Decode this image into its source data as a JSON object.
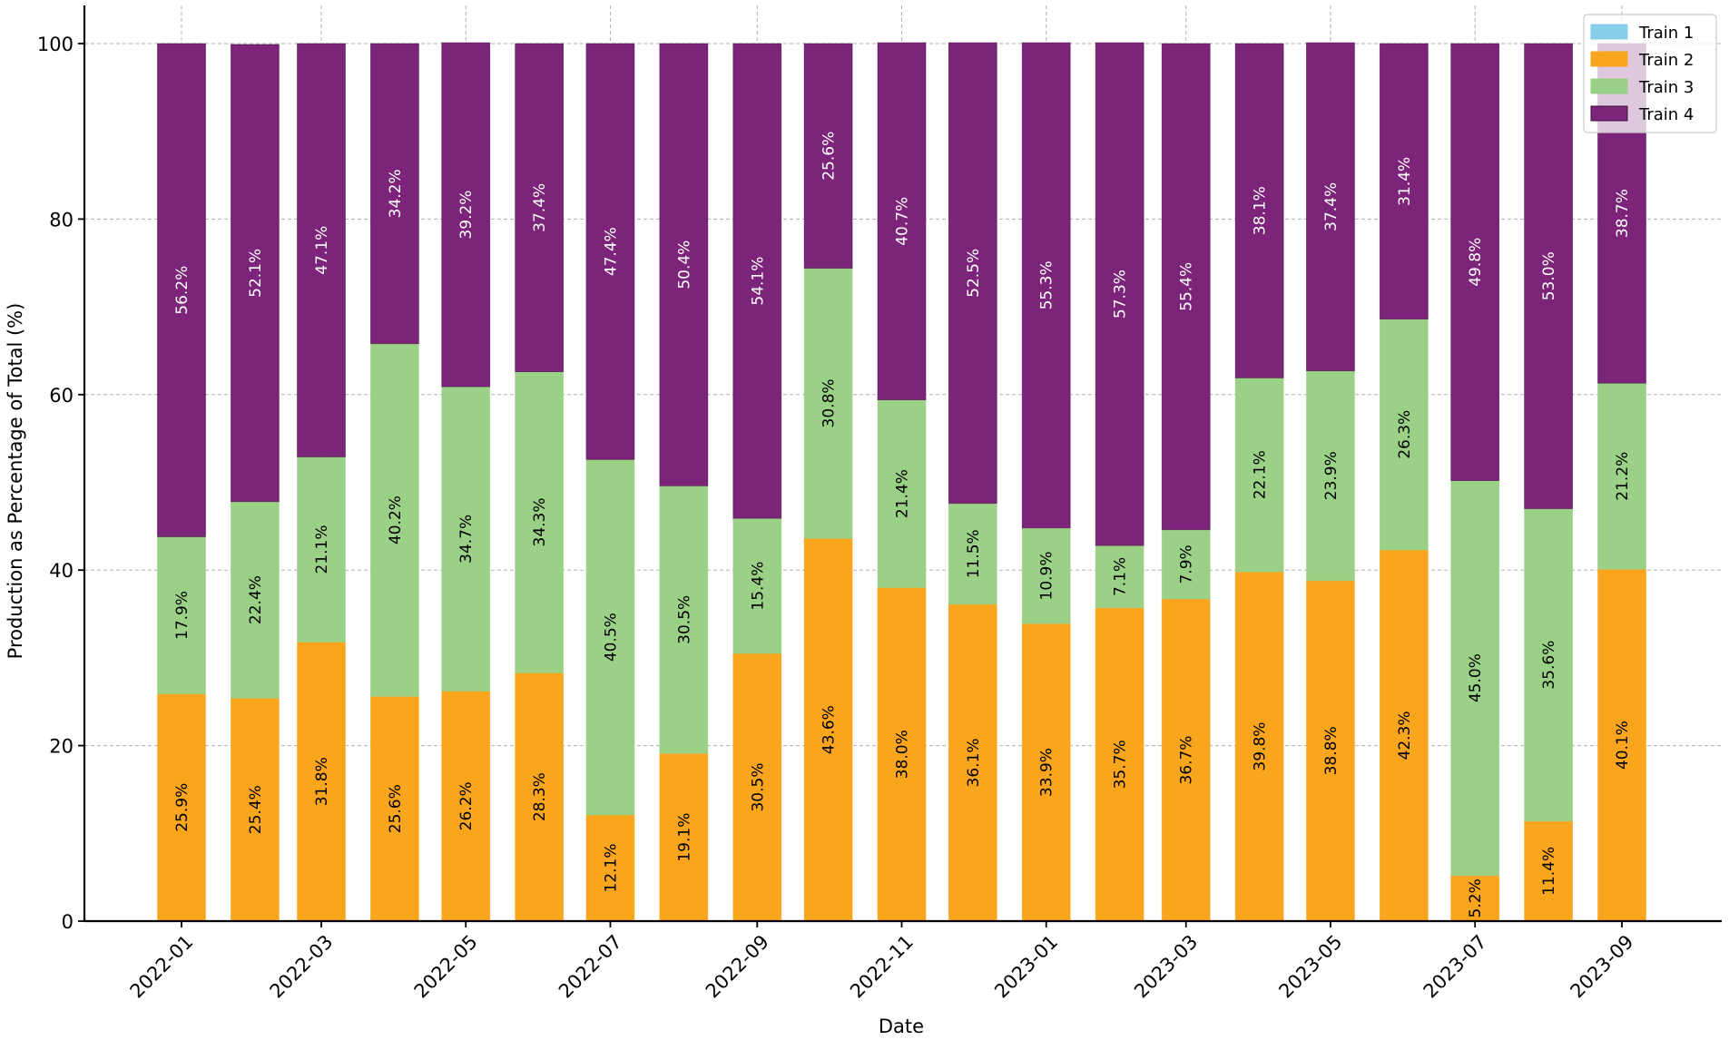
{
  "chart_data": {
    "type": "bar",
    "stacked": true,
    "title": "",
    "xlabel": "Date",
    "ylabel": "Production as Percentage of Total (%)",
    "ylim": [
      0,
      105
    ],
    "yticks": [
      0,
      20,
      40,
      60,
      80,
      100
    ],
    "grid": true,
    "legend_position": "top-right",
    "categories": [
      "2022-01",
      "2022-02",
      "2022-03",
      "2022-04",
      "2022-05",
      "2022-06",
      "2022-07",
      "2022-08",
      "2022-09",
      "2022-10",
      "2022-11",
      "2022-12",
      "2023-01",
      "2023-02",
      "2023-03",
      "2023-04",
      "2023-05",
      "2023-06",
      "2023-07",
      "2023-08",
      "2023-09"
    ],
    "xtick_labels": [
      "2022-01",
      "2022-03",
      "2022-05",
      "2022-07",
      "2022-09",
      "2022-11",
      "2023-01",
      "2023-03",
      "2023-05",
      "2023-07",
      "2023-09"
    ],
    "series": [
      {
        "name": "Train 1",
        "color": "#87ceeb",
        "label_color": "#000000",
        "values": [
          0,
          0,
          0,
          0,
          0,
          0,
          0,
          0,
          0,
          0,
          0,
          0,
          0,
          0,
          0,
          0,
          0,
          0,
          0,
          0,
          0
        ]
      },
      {
        "name": "Train 2",
        "color": "#f9a51e",
        "label_color": "#000000",
        "values": [
          25.9,
          25.4,
          31.8,
          25.6,
          26.2,
          28.3,
          12.1,
          19.1,
          30.5,
          43.6,
          38.0,
          36.1,
          33.9,
          35.7,
          36.7,
          39.8,
          38.8,
          42.3,
          5.2,
          11.4,
          40.1
        ]
      },
      {
        "name": "Train 3",
        "color": "#9bd087",
        "label_color": "#000000",
        "values": [
          17.9,
          22.4,
          21.1,
          40.2,
          34.7,
          34.3,
          40.5,
          30.5,
          15.4,
          30.8,
          21.4,
          11.5,
          10.9,
          7.1,
          7.9,
          22.1,
          23.9,
          26.3,
          45.0,
          35.6,
          21.2
        ]
      },
      {
        "name": "Train 4",
        "color": "#7b2479",
        "label_color": "#ffffff",
        "values": [
          56.2,
          52.1,
          47.1,
          34.2,
          39.2,
          37.4,
          47.4,
          50.4,
          54.1,
          25.6,
          40.7,
          52.5,
          55.3,
          57.3,
          55.4,
          38.1,
          37.4,
          31.4,
          49.8,
          53.0,
          38.7
        ]
      }
    ]
  }
}
